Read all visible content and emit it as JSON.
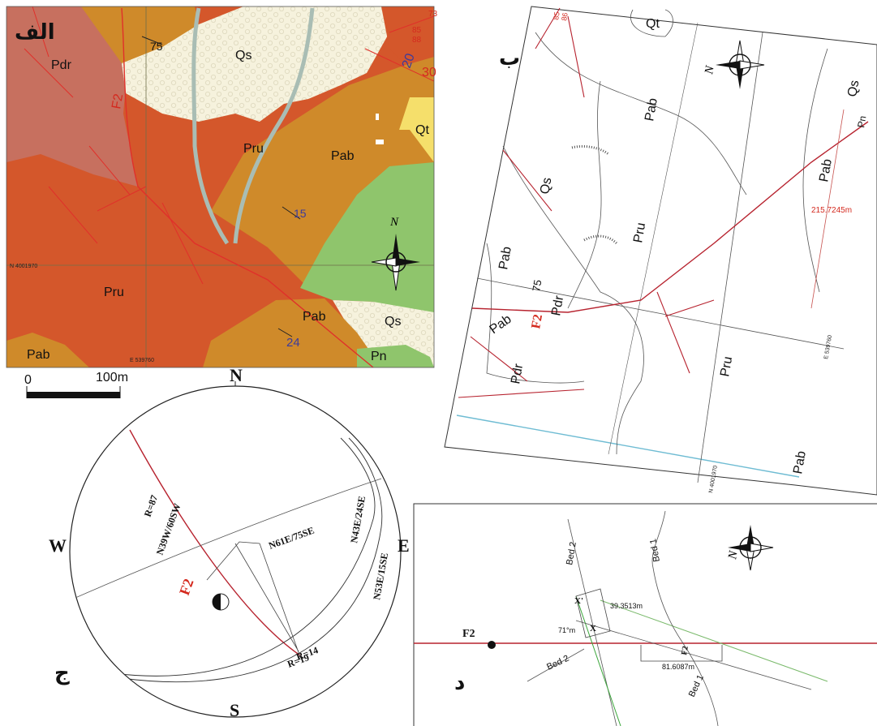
{
  "panels": {
    "alef": "الف",
    "be": "ب",
    "jim": "ج",
    "dal": "د"
  },
  "map_a": {
    "units": {
      "pdr": "Pdr",
      "qs": "Qs",
      "qs2": "Qs",
      "qt": "Qt",
      "pru": "Pru",
      "pru2": "Pru",
      "pab": "Pab",
      "pab2": "Pab",
      "pab3": "Pab",
      "pn": "Pn"
    },
    "fault": "F2",
    "dips": {
      "d75": "75",
      "d15": "15",
      "d24": "24",
      "d20": "20",
      "d30": "30",
      "d85": "85",
      "d88": "88",
      "d73": "73"
    },
    "north": "N",
    "northing": "N 4001970",
    "easting": "E 539760",
    "scale": {
      "zero": "0",
      "end": "100m"
    },
    "colors": {
      "pdr": "#c7705f",
      "pru": "#d4572b",
      "pab": "#cf8a2a",
      "qs": "#f6f2dd",
      "qt": "#f5df6b",
      "pn": "#8fc56c",
      "fault": "#e0302a",
      "stream": "#a9bdb4"
    }
  },
  "map_b": {
    "units": {
      "qt": "Qt",
      "qs": "Qs",
      "qs2": "Qs",
      "pab": "Pab",
      "pab2": "Pab",
      "pab3": "Pab",
      "pab4": "Pab",
      "pab5": "Pab",
      "pn": "Pn",
      "pru": "Pru",
      "pru2": "Pru",
      "pdr": "Pdr",
      "pdr2": "Pdr"
    },
    "fault": "F2",
    "dip": "75",
    "distance": "215.7245m",
    "northing": "N 4001970",
    "easting": "E 539760",
    "top_dips": {
      "a": "85",
      "b": "86"
    },
    "north": "N"
  },
  "stereonet": {
    "dirs": {
      "n": "N",
      "s": "S",
      "e": "E",
      "w": "W"
    },
    "planes": {
      "f2": "F2",
      "f2_attitude": "N39W/60SW",
      "f2_rake": "R=87",
      "n61e": "N61E/75SE",
      "n43e": "N43E/24SE",
      "n53e": "N53E/15SE",
      "r14": "R=14",
      "r19": "R=19"
    }
  },
  "section_d": {
    "f2": "F2",
    "bed2": "Bed 2",
    "bed2b": "Bed 2",
    "bed1": "Bed 1",
    "bed1b": "Bed 1",
    "x": "X",
    "xprime": "X'",
    "angle": "71°m",
    "d1": "39.3513m",
    "d2": "81.6087m",
    "fault_label": "F2",
    "north": "N"
  }
}
